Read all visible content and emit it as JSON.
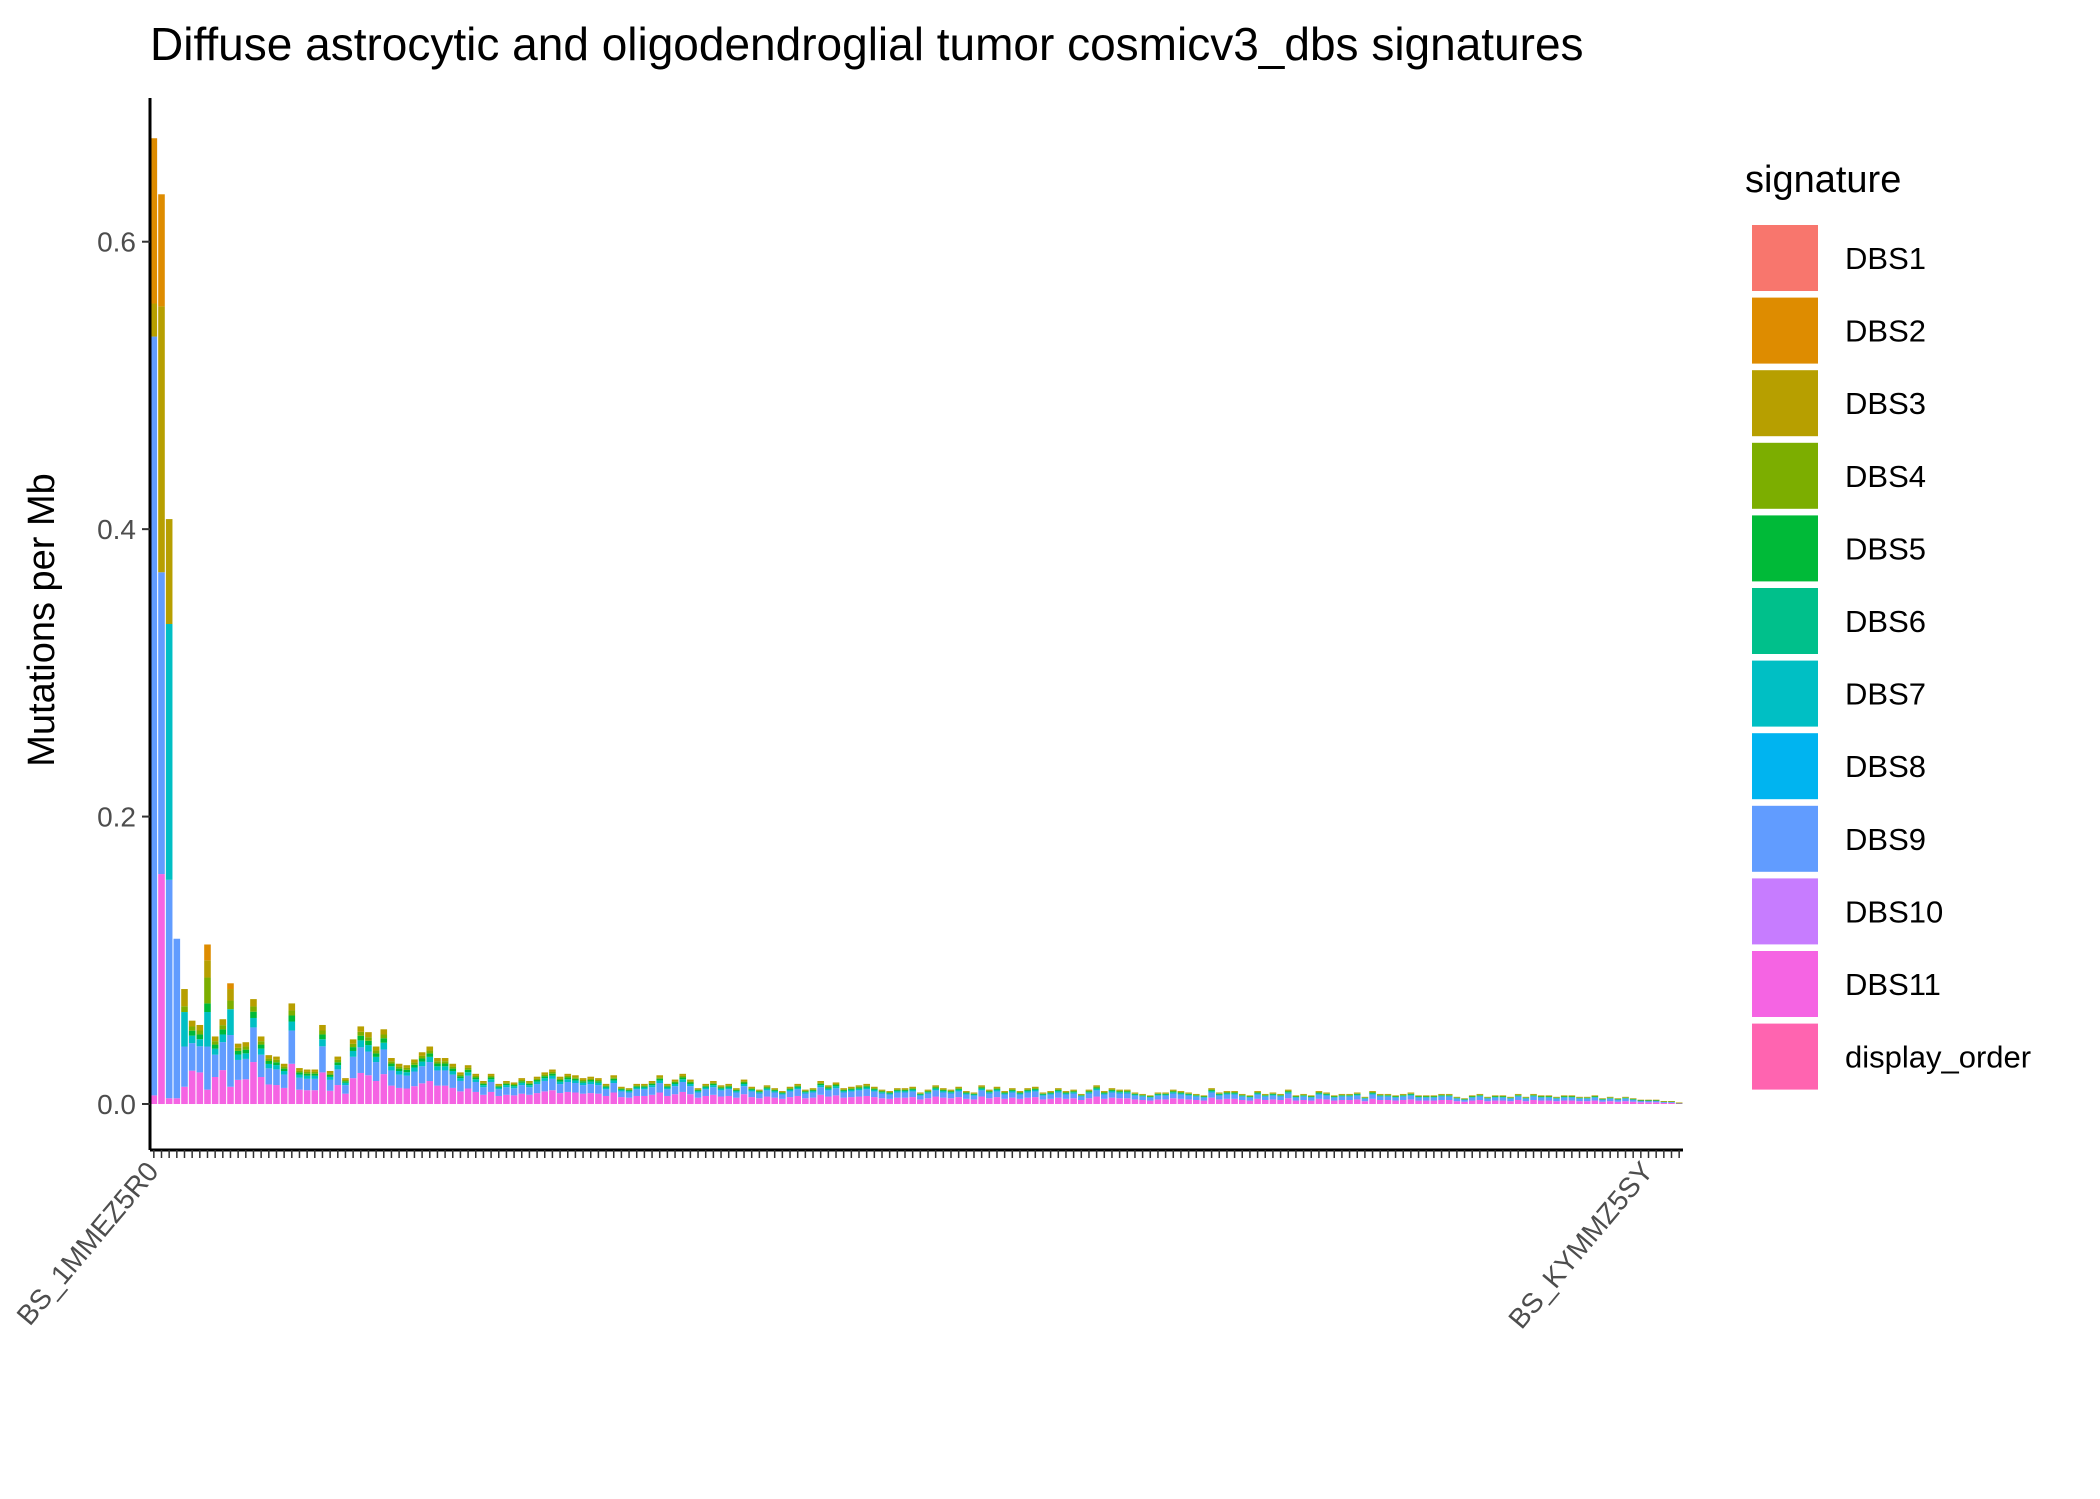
{
  "chart_data": {
    "type": "bar",
    "stacked": true,
    "title": "Diffuse astrocytic and oligodendroglial tumor cosmicv3_dbs signatures",
    "xlabel": "",
    "ylabel": "Mutations per Mb",
    "ylim": [
      -0.032,
      0.7
    ],
    "yticks": [
      0.0,
      0.2,
      0.4,
      0.6
    ],
    "ytick_labels": [
      "0.0",
      "0.2",
      "0.4",
      "0.6"
    ],
    "grid": false,
    "legend": {
      "title": "signature",
      "position": "right",
      "entries": [
        {
          "name": "DBS1",
          "color": "#F8766D"
        },
        {
          "name": "DBS2",
          "color": "#DE8C00"
        },
        {
          "name": "DBS3",
          "color": "#B79F00"
        },
        {
          "name": "DBS4",
          "color": "#7CAE00"
        },
        {
          "name": "DBS5",
          "color": "#00BA38"
        },
        {
          "name": "DBS6",
          "color": "#00C08B"
        },
        {
          "name": "DBS7",
          "color": "#00BFC4"
        },
        {
          "name": "DBS8",
          "color": "#00B4F0"
        },
        {
          "name": "DBS9",
          "color": "#619CFF"
        },
        {
          "name": "DBS10",
          "color": "#C77CFF"
        },
        {
          "name": "DBS11",
          "color": "#F564E3"
        },
        {
          "name": "display_order",
          "color": "#FF64B0"
        }
      ]
    },
    "samples": [
      "BS_1MMEZ5R0",
      "",
      "",
      "",
      "",
      "",
      "",
      "",
      "",
      "",
      "",
      "",
      "",
      "",
      "",
      "",
      "",
      "",
      "",
      "",
      "",
      "",
      "",
      "",
      "",
      "",
      "",
      "",
      "",
      "",
      "",
      "",
      "",
      "",
      "",
      "",
      "",
      "",
      "",
      "",
      "",
      "",
      "",
      "",
      "",
      "",
      "",
      "",
      "",
      "",
      "",
      "",
      "",
      "",
      "",
      "",
      "",
      "",
      "",
      "",
      "",
      "",
      "",
      "",
      "",
      "",
      "",
      "",
      "",
      "",
      "",
      "",
      "",
      "",
      "",
      "",
      "",
      "",
      "",
      "",
      "",
      "",
      "",
      "",
      "",
      "",
      "",
      "",
      "",
      "",
      "",
      "",
      "",
      "",
      "",
      "",
      "",
      "",
      "",
      "",
      "",
      "",
      "",
      "",
      "",
      "",
      "",
      "",
      "",
      "",
      "",
      "",
      "",
      "",
      "",
      "",
      "",
      "",
      "",
      "",
      "",
      "",
      "",
      "",
      "",
      "",
      "",
      "",
      "",
      "",
      "",
      "",
      "",
      "",
      "",
      "",
      "",
      "",
      "",
      "",
      "",
      "",
      "",
      "",
      "",
      "",
      "",
      "",
      "",
      "",
      "",
      "",
      "",
      "",
      "",
      "",
      "",
      "",
      "",
      "",
      "",
      "",
      "",
      "",
      "",
      "",
      "",
      "",
      "",
      "",
      "",
      "",
      "",
      "",
      "",
      "",
      "",
      "",
      "",
      "",
      "",
      "",
      "",
      "",
      "",
      "",
      "",
      "",
      "",
      "",
      "",
      "",
      "",
      "",
      "",
      "BS_KYMMZ5SY"
    ],
    "totals_by_rank": [
      0.672,
      0.633,
      0.407,
      0.115,
      0.08,
      0.058,
      0.055,
      0.111,
      0.047,
      0.059,
      0.084,
      0.042,
      0.043,
      0.073,
      0.047,
      0.034,
      0.033,
      0.028,
      0.07,
      0.025,
      0.024,
      0.024,
      0.055,
      0.023,
      0.033,
      0.018,
      0.045,
      0.054,
      0.05,
      0.04,
      0.052,
      0.032,
      0.028,
      0.027,
      0.031,
      0.036,
      0.04,
      0.032,
      0.032,
      0.028,
      0.022,
      0.027,
      0.021,
      0.016,
      0.021,
      0.014,
      0.016,
      0.015,
      0.018,
      0.016,
      0.019,
      0.022,
      0.024,
      0.019,
      0.021,
      0.02,
      0.018,
      0.019,
      0.018,
      0.014,
      0.02,
      0.012,
      0.011,
      0.014,
      0.014,
      0.016,
      0.02,
      0.014,
      0.017,
      0.021,
      0.017,
      0.011,
      0.014,
      0.016,
      0.013,
      0.014,
      0.011,
      0.017,
      0.012,
      0.01,
      0.013,
      0.011,
      0.009,
      0.012,
      0.014,
      0.01,
      0.011,
      0.016,
      0.013,
      0.015,
      0.011,
      0.012,
      0.013,
      0.014,
      0.012,
      0.01,
      0.009,
      0.011,
      0.011,
      0.012,
      0.008,
      0.01,
      0.013,
      0.011,
      0.01,
      0.012,
      0.009,
      0.008,
      0.013,
      0.01,
      0.012,
      0.009,
      0.011,
      0.009,
      0.011,
      0.012,
      0.008,
      0.009,
      0.011,
      0.009,
      0.01,
      0.007,
      0.01,
      0.013,
      0.009,
      0.011,
      0.01,
      0.01,
      0.008,
      0.007,
      0.006,
      0.008,
      0.008,
      0.01,
      0.009,
      0.008,
      0.007,
      0.006,
      0.011,
      0.008,
      0.009,
      0.009,
      0.007,
      0.006,
      0.009,
      0.007,
      0.008,
      0.007,
      0.01,
      0.006,
      0.007,
      0.006,
      0.009,
      0.008,
      0.006,
      0.007,
      0.007,
      0.008,
      0.005,
      0.009,
      0.007,
      0.007,
      0.006,
      0.007,
      0.008,
      0.006,
      0.006,
      0.006,
      0.007,
      0.007,
      0.005,
      0.004,
      0.006,
      0.007,
      0.005,
      0.006,
      0.006,
      0.005,
      0.007,
      0.005,
      0.007,
      0.006,
      0.006,
      0.005,
      0.006,
      0.006,
      0.005,
      0.005,
      0.006,
      0.004,
      0.005,
      0.004,
      0.005,
      0.004,
      0.003,
      0.003,
      0.003,
      0.002,
      0.002,
      0.001
    ],
    "featured_stacks": [
      {
        "rank": 1,
        "stack": {
          "DBS11": 0.006,
          "DBS9": 0.528,
          "DBS3": 0.023,
          "DBS2": 0.115
        }
      },
      {
        "rank": 2,
        "stack": {
          "DBS11": 0.16,
          "DBS9": 0.21,
          "DBS3": 0.185,
          "DBS2": 0.078
        }
      },
      {
        "rank": 3,
        "stack": {
          "DBS11": 0.004,
          "DBS9": 0.152,
          "DBS7": 0.178,
          "DBS3": 0.073
        }
      },
      {
        "rank": 4,
        "stack": {
          "DBS11": 0.004,
          "DBS9": 0.111
        }
      },
      {
        "rank": 5,
        "stack": {
          "DBS11": 0.012,
          "DBS9": 0.028,
          "DBS7": 0.024,
          "DBS4": 0.004,
          "DBS3": 0.012
        }
      },
      {
        "rank": 8,
        "stack": {
          "DBS11": 0.01,
          "DBS9": 0.03,
          "DBS7": 0.024,
          "DBS5": 0.006,
          "DBS4": 0.018,
          "DBS3": 0.012,
          "DBS2": 0.011
        }
      },
      {
        "rank": 11,
        "stack": {
          "DBS11": 0.012,
          "DBS9": 0.036,
          "DBS7": 0.018,
          "DBS4": 0.006,
          "DBS3": 0.008,
          "DBS2": 0.004
        }
      }
    ]
  }
}
